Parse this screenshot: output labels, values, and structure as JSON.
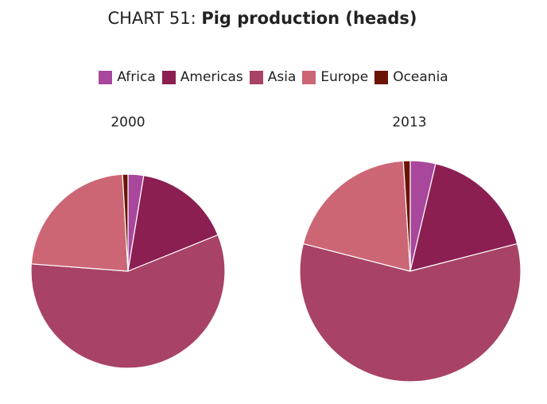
{
  "chart_data": {
    "type": "pie",
    "title_prefix": "CHART 51: ",
    "title_main": "Pig production (heads)",
    "legend_position": "top",
    "categories": [
      "Africa",
      "Americas",
      "Asia",
      "Europe",
      "Oceania"
    ],
    "colors": [
      "#a8479c",
      "#8b1f52",
      "#a84266",
      "#cc6675",
      "#6b1405"
    ],
    "pies": [
      {
        "label": "2000",
        "values": [
          2.6,
          16.3,
          57.3,
          22.9,
          0.9
        ]
      },
      {
        "label": "2013",
        "values": [
          3.7,
          17.3,
          58.0,
          20.0,
          1.0
        ]
      }
    ]
  }
}
